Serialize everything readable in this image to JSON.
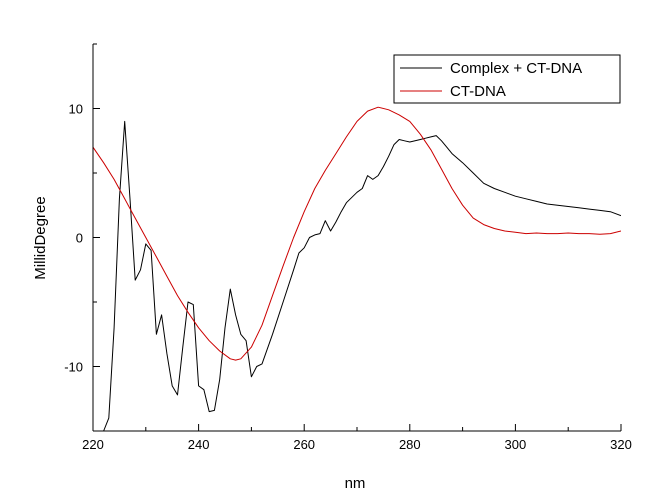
{
  "chart_data": {
    "type": "line",
    "xlabel": "nm",
    "ylabel": "MillidDegree",
    "xlim": [
      220,
      320
    ],
    "ylim": [
      -15,
      15
    ],
    "x_ticks": [
      220,
      240,
      260,
      280,
      300,
      320
    ],
    "y_ticks": [
      -10,
      0,
      10
    ],
    "grid": false,
    "legend_position": "top-right",
    "series": [
      {
        "name": "Complex + CT-DNA",
        "color": "#000000",
        "x": [
          222,
          223,
          224,
          225,
          226,
          227,
          228,
          229,
          230,
          231,
          232,
          233,
          234,
          235,
          236,
          237,
          238,
          239,
          240,
          241,
          242,
          243,
          244,
          245,
          246,
          247,
          248,
          249,
          250,
          251,
          252,
          254,
          256,
          258,
          259,
          260,
          261,
          262,
          263,
          264,
          265,
          266,
          267,
          268,
          270,
          271,
          272,
          273,
          274,
          275,
          276,
          277,
          278,
          279,
          280,
          281,
          282,
          283,
          284,
          285,
          286,
          287,
          288,
          290,
          292,
          294,
          296,
          298,
          300,
          302,
          304,
          306,
          308,
          310,
          312,
          314,
          316,
          318,
          320
        ],
        "values": [
          -15,
          -14,
          -7,
          3,
          9,
          3,
          -3.3,
          -2.5,
          -0.5,
          -1,
          -7.5,
          -6,
          -9,
          -11.5,
          -12.2,
          -8.5,
          -5,
          -5.2,
          -11.5,
          -11.8,
          -13.5,
          -13.4,
          -11,
          -7,
          -4,
          -6,
          -7.5,
          -8,
          -10.8,
          -10,
          -9.8,
          -7.5,
          -5,
          -2.5,
          -1.2,
          -0.8,
          0,
          0.2,
          0.3,
          1.3,
          0.5,
          1.2,
          2,
          2.7,
          3.5,
          3.8,
          4.8,
          4.5,
          4.8,
          5.5,
          6.3,
          7.2,
          7.6,
          7.5,
          7.4,
          7.5,
          7.6,
          7.7,
          7.8,
          7.9,
          7.5,
          7,
          6.5,
          5.8,
          5,
          4.2,
          3.8,
          3.5,
          3.2,
          3,
          2.8,
          2.6,
          2.5,
          2.4,
          2.3,
          2.2,
          2.1,
          2.0,
          1.7
        ]
      },
      {
        "name": "CT-DNA",
        "color": "#cc0000",
        "x": [
          220,
          222,
          224,
          226,
          228,
          230,
          232,
          234,
          236,
          238,
          240,
          242,
          244,
          246,
          247,
          248,
          250,
          252,
          254,
          256,
          258,
          260,
          262,
          264,
          266,
          268,
          270,
          272,
          274,
          276,
          278,
          280,
          282,
          284,
          286,
          288,
          290,
          292,
          294,
          296,
          298,
          300,
          302,
          304,
          306,
          308,
          310,
          312,
          314,
          316,
          318,
          320
        ],
        "values": [
          7,
          5.8,
          4.5,
          3,
          1.5,
          0,
          -1.5,
          -3,
          -4.5,
          -5.8,
          -7,
          -8,
          -8.8,
          -9.4,
          -9.5,
          -9.4,
          -8.5,
          -6.8,
          -4.5,
          -2.2,
          0,
          2,
          3.8,
          5.2,
          6.5,
          7.8,
          9,
          9.8,
          10.1,
          9.9,
          9.5,
          9,
          8,
          6.8,
          5.3,
          3.8,
          2.5,
          1.5,
          1,
          0.7,
          0.5,
          0.4,
          0.3,
          0.35,
          0.3,
          0.3,
          0.35,
          0.3,
          0.3,
          0.25,
          0.3,
          0.5
        ]
      }
    ]
  }
}
